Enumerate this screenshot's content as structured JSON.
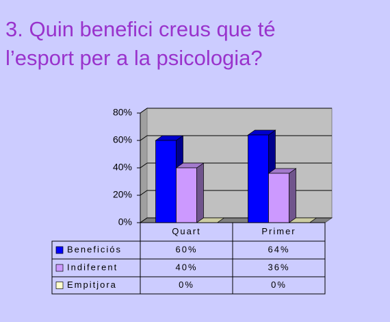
{
  "chart_data": {
    "type": "bar3d",
    "title": "3. Quin benefici creus que té l’esport per a la psicologia?",
    "categories": [
      "Quart",
      "Primer"
    ],
    "series": [
      {
        "name": "Beneficiós",
        "color": "#0000ff",
        "values": [
          60,
          64
        ],
        "value_labels": [
          "60%",
          "64%"
        ]
      },
      {
        "name": "Indiferent",
        "color": "#cc99ff",
        "values": [
          40,
          36
        ],
        "value_labels": [
          "40%",
          "36%"
        ]
      },
      {
        "name": "Empitjora",
        "color": "#ffffcc",
        "values": [
          0,
          0
        ],
        "value_labels": [
          "0%",
          "0%"
        ]
      }
    ],
    "ylim": [
      0,
      80
    ],
    "yticks": [
      {
        "value": 0,
        "label": "0%"
      },
      {
        "value": 20,
        "label": "20%"
      },
      {
        "value": 40,
        "label": "40%"
      },
      {
        "value": 60,
        "label": "60%"
      },
      {
        "value": 80,
        "label": "80%"
      }
    ],
    "grid": true
  }
}
